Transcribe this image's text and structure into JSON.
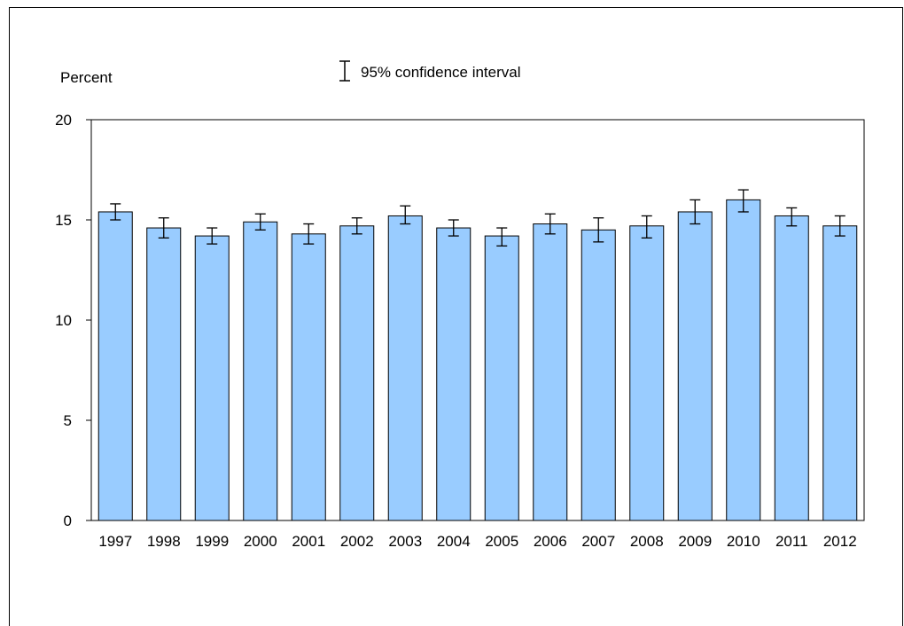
{
  "chart_data": {
    "type": "bar",
    "ylabel": "Percent",
    "legend": {
      "label": "95% confidence interval",
      "placement": "top-center"
    },
    "ylim": [
      0,
      20
    ],
    "yticks": [
      "0",
      "5",
      "10",
      "15",
      "20"
    ],
    "categories": [
      "1997",
      "1998",
      "1999",
      "2000",
      "2001",
      "2002",
      "2003",
      "2004",
      "2005",
      "2006",
      "2007",
      "2008",
      "2009",
      "2010",
      "2011",
      "2012"
    ],
    "series": [
      {
        "values": [
          15.4,
          14.6,
          14.2,
          14.9,
          14.3,
          14.7,
          15.2,
          14.6,
          14.2,
          14.8,
          14.5,
          14.7,
          15.4,
          16.0,
          15.2,
          14.7
        ],
        "ci_low": [
          15.0,
          14.1,
          13.8,
          14.5,
          13.8,
          14.3,
          14.8,
          14.2,
          13.7,
          14.3,
          13.9,
          14.1,
          14.8,
          15.4,
          14.7,
          14.2
        ],
        "ci_high": [
          15.8,
          15.1,
          14.6,
          15.3,
          14.8,
          15.1,
          15.7,
          15.0,
          14.6,
          15.3,
          15.1,
          15.2,
          16.0,
          16.5,
          15.6,
          15.2
        ]
      }
    ],
    "colors": {
      "bar_fill": "#99ccff",
      "bar_stroke": "#000000"
    },
    "grid": false
  }
}
